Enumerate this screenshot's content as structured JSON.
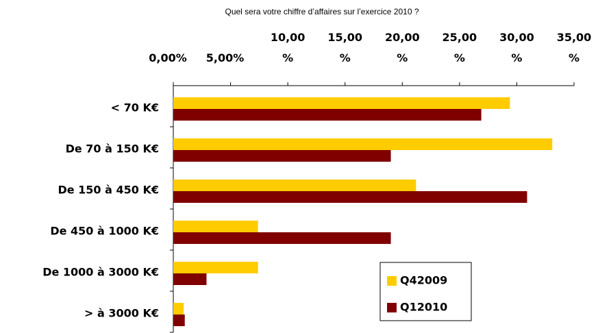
{
  "chart_data": {
    "type": "bar",
    "orientation": "horizontal",
    "title": "Quel sera votre chiffre d’affaires sur l’exercice 2010 ?",
    "categories": [
      "< 70 K€",
      "De 70 à 150 K€",
      "De 150 à 450 K€",
      "De 450 à 1000 K€",
      "De 1000 à 3000 K€",
      "> à 3000 K€"
    ],
    "series": [
      {
        "name": "Q42009",
        "color": "#ffcc00",
        "values": [
          29.4,
          33.1,
          21.2,
          7.4,
          7.4,
          0.9
        ]
      },
      {
        "name": "Q12010",
        "color": "#800000",
        "values": [
          26.9,
          19.0,
          30.9,
          19.0,
          2.9,
          1.0
        ]
      }
    ],
    "xlim": [
      0,
      35
    ],
    "xticks": [
      {
        "value": 0,
        "label": "0,00%"
      },
      {
        "value": 5,
        "label": "5,00%"
      },
      {
        "value": 10,
        "label": "10,00 %"
      },
      {
        "value": 15,
        "label": "15,00 %"
      },
      {
        "value": 20,
        "label": "20,00 %"
      },
      {
        "value": 25,
        "label": "25,00 %"
      },
      {
        "value": 30,
        "label": "30,00 %"
      },
      {
        "value": 35,
        "label": "35,00 %"
      }
    ],
    "grid": false,
    "legend": "lower right"
  }
}
